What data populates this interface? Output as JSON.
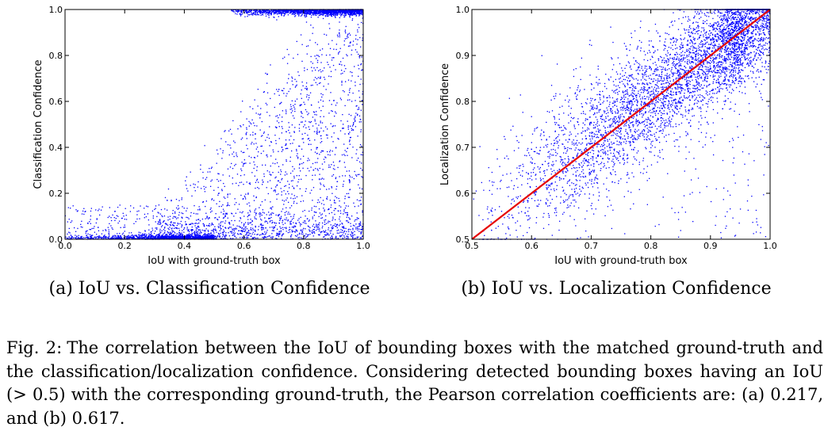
{
  "chart_data": [
    {
      "type": "scatter",
      "panel_label": "(a)",
      "caption": "(a) IoU vs. Classification Confidence",
      "title": "",
      "xlabel": "IoU with ground-truth box",
      "ylabel": "Classification Confidence",
      "xlim": [
        0.0,
        1.0
      ],
      "ylim": [
        0.0,
        1.0
      ],
      "xticks": [
        "0.0",
        "0.2",
        "0.4",
        "0.6",
        "0.8",
        "1.0"
      ],
      "yticks": [
        "0.0",
        "0.2",
        "0.4",
        "0.6",
        "0.8",
        "1.0"
      ],
      "grid": false,
      "marker_color": "#0000ff",
      "n_points": 5000,
      "pearson_r": 0.217,
      "distribution": [
        {
          "x_range": [
            0.0,
            0.55
          ],
          "y_typical": 0.0,
          "share": "dense band near y=0.0"
        },
        {
          "x_range": [
            0.35,
            1.0
          ],
          "y_range": [
            0.0,
            1.0
          ],
          "share": "sparse scatter across all confidences"
        },
        {
          "x_range": [
            0.55,
            1.0
          ],
          "y_typical": 0.99,
          "share": "dense band near y=1.0"
        }
      ]
    },
    {
      "type": "scatter",
      "panel_label": "(b)",
      "caption": "(b) IoU vs. Localization Confidence",
      "title": "",
      "xlabel": "IoU with ground-truth box",
      "ylabel": "Localization Confidence",
      "xlim": [
        0.5,
        1.0
      ],
      "ylim": [
        0.5,
        1.0
      ],
      "xticks": [
        "0.5",
        "0.6",
        "0.7",
        "0.8",
        "0.9",
        "1.0"
      ],
      "yticks": [
        "0.5",
        "0.6",
        "0.7",
        "0.8",
        "0.9",
        "1.0"
      ],
      "grid": false,
      "marker_color": "#0000ff",
      "n_points": 5000,
      "pearson_r": 0.617,
      "reference_line": {
        "x": [
          0.5,
          1.0
        ],
        "y": [
          0.5,
          1.0
        ],
        "color": "#e60000"
      },
      "distribution": [
        {
          "x_range": [
            0.5,
            1.0
          ],
          "y_trend": "y ≈ x with spread ≈ 0.06 to 0.1",
          "densest_near": [
            0.95,
            0.96
          ]
        }
      ]
    }
  ],
  "figure_caption": {
    "label": "Fig. 2:",
    "text": "The correlation between the IoU of bounding boxes with the matched ground-truth and the classification/localization confidence. Considering detected bounding boxes having an IoU (> 0.5) with the corresponding ground-truth, the Pearson correlation coefficients are: (a) 0.217, and (b) 0.617."
  }
}
